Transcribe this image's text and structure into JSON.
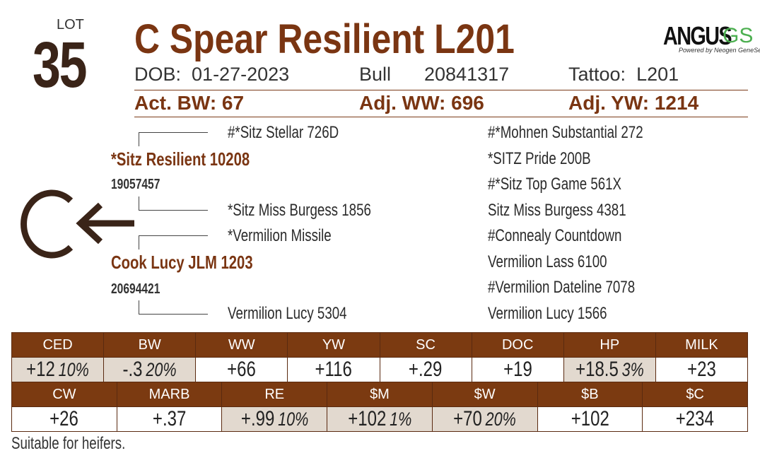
{
  "lot": {
    "label": "LOT",
    "number": "35"
  },
  "title": "C Spear Resilient L201",
  "logo": {
    "brand": "ANGUS",
    "suffix": "GS",
    "tagline": "Powered by Neogen GeneSeek"
  },
  "info": {
    "dob_label": "DOB:",
    "dob": "01-27-2023",
    "sex": "Bull",
    "reg": "20841317",
    "tattoo_label": "Tattoo:",
    "tattoo": "L201"
  },
  "weights": {
    "bw": "Act. BW: 67",
    "ww": "Adj. WW: 696",
    "yw": "Adj. YW: 1214"
  },
  "pedigree": {
    "sire": {
      "name": "*Sitz Resilient 10208",
      "reg": "19057457"
    },
    "dam": {
      "name": "Cook Lucy JLM 1203",
      "reg": "20694421"
    },
    "sire_sire": "#*Sitz Stellar 726D",
    "sire_dam": "*Sitz Miss Burgess 1856",
    "dam_sire": "*Vermilion Missile",
    "dam_dam": "Vermilion Lucy 5304",
    "great": [
      "#*Mohnen Substantial 272",
      "*SITZ Pride 200B",
      "#*Sitz Top Game 561X",
      "Sitz Miss Burgess 4381",
      "#Connealy Countdown",
      "Vermilion Lass 6100",
      "#Vermilion Dateline 7078",
      "Vermilion Lucy 1566"
    ],
    "brand_letter": "C"
  },
  "epds_row1": [
    {
      "label": "CED",
      "value": "+12",
      "pct": "10%"
    },
    {
      "label": "BW",
      "value": "-.3",
      "pct": "20%"
    },
    {
      "label": "WW",
      "value": "+66"
    },
    {
      "label": "YW",
      "value": "+116"
    },
    {
      "label": "SC",
      "value": "+.29"
    },
    {
      "label": "DOC",
      "value": "+19"
    },
    {
      "label": "HP",
      "value": "+18.5",
      "pct": "3%"
    },
    {
      "label": "MILK",
      "value": "+23"
    }
  ],
  "epds_row2": [
    {
      "label": "CW",
      "value": "+26"
    },
    {
      "label": "MARB",
      "value": "+.37"
    },
    {
      "label": "RE",
      "value": "+.99",
      "pct": "10%"
    },
    {
      "label": "$M",
      "value": "+102",
      "pct": "1%"
    },
    {
      "label": "$W",
      "value": "+70",
      "pct": "20%"
    },
    {
      "label": "$B",
      "value": "+102"
    },
    {
      "label": "$C",
      "value": "+234"
    }
  ],
  "note": "Suitable for heifers.",
  "colors": {
    "brown": "#7b3a11",
    "shaded": "#e2d9cf"
  }
}
